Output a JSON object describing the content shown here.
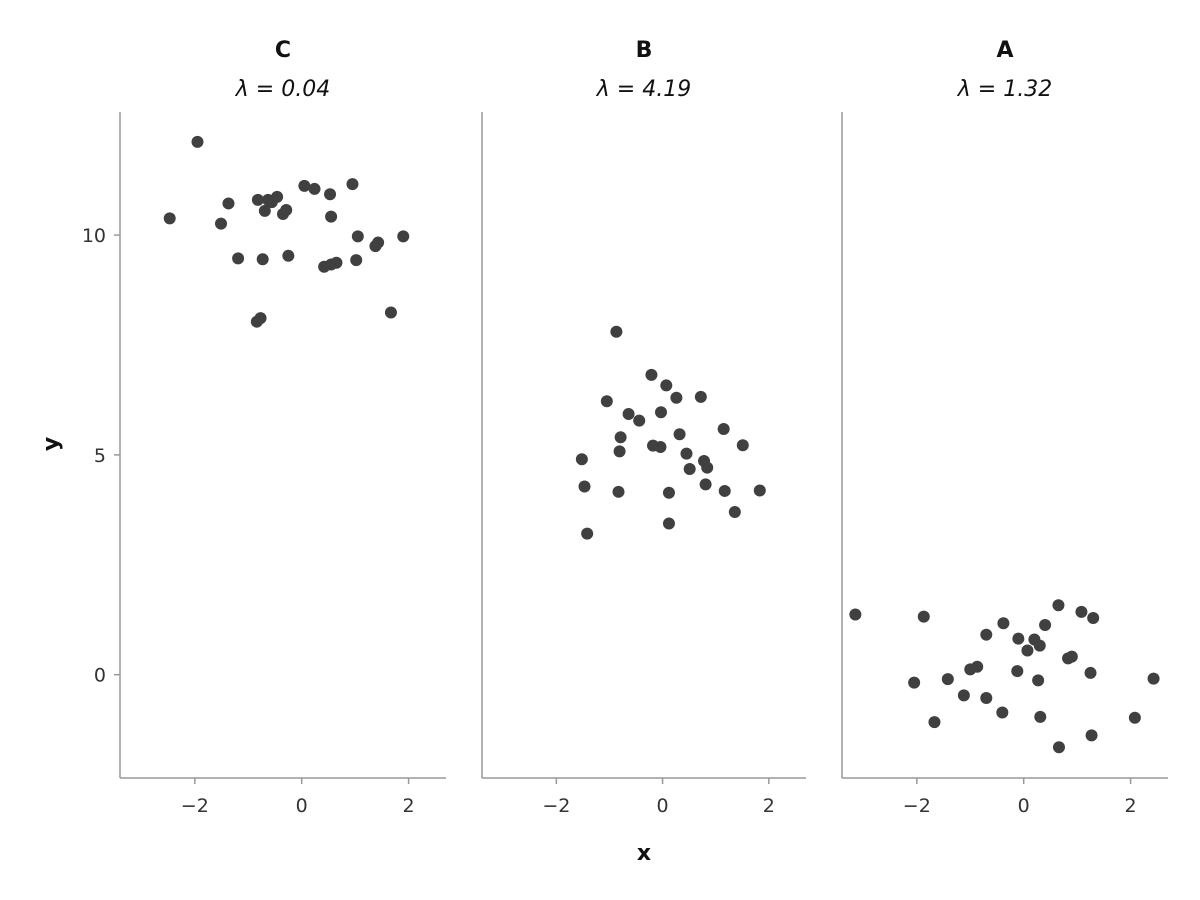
{
  "chart_data": {
    "type": "scatter",
    "layout": "facets-1x3",
    "xlabel": "x",
    "ylabel": "y",
    "xlim": [
      -3.4,
      2.7
    ],
    "ylim": [
      -2.35,
      12.8
    ],
    "x_ticks": [
      -2,
      0,
      2
    ],
    "x_tick_labels": [
      "−2",
      "0",
      "2"
    ],
    "y_ticks": [
      0,
      5,
      10
    ],
    "y_tick_labels": [
      "0",
      "5",
      "10"
    ],
    "point_color": "#404040",
    "facets": [
      {
        "title": "C",
        "subtitle": "λ = 0.04",
        "x": [
          -2.47,
          -1.95,
          -1.37,
          -1.51,
          -0.82,
          -0.63,
          -0.56,
          -0.46,
          -0.29,
          -0.35,
          -0.69,
          0.05,
          0.24,
          0.53,
          0.95,
          0.55,
          1.05,
          -1.19,
          -0.73,
          -0.25,
          0.42,
          0.55,
          0.65,
          1.02,
          1.38,
          1.43,
          1.9,
          1.67,
          -0.84,
          -0.77
        ],
        "y": [
          10.38,
          12.12,
          10.72,
          10.26,
          10.8,
          10.8,
          10.75,
          10.87,
          10.57,
          10.48,
          10.55,
          11.12,
          11.05,
          10.93,
          11.16,
          10.42,
          9.97,
          9.47,
          9.45,
          9.53,
          9.28,
          9.33,
          9.37,
          9.43,
          9.75,
          9.83,
          9.97,
          8.24,
          8.03,
          8.11
        ]
      },
      {
        "title": "B",
        "subtitle": "λ = 4.19",
        "x": [
          -0.87,
          -0.21,
          0.07,
          0.72,
          -1.05,
          -0.64,
          -0.44,
          -0.03,
          0.26,
          -0.79,
          0.32,
          1.15,
          1.51,
          -1.52,
          -0.81,
          -0.18,
          -0.04,
          0.45,
          0.51,
          0.78,
          0.84,
          -1.47,
          -0.83,
          0.12,
          0.81,
          1.17,
          1.83,
          1.36,
          0.12,
          -1.42
        ],
        "y": [
          7.8,
          6.82,
          6.58,
          6.32,
          6.22,
          5.93,
          5.78,
          5.97,
          6.3,
          5.4,
          5.47,
          5.59,
          5.22,
          4.9,
          5.08,
          5.21,
          5.18,
          5.03,
          4.68,
          4.86,
          4.71,
          4.28,
          4.16,
          4.14,
          4.33,
          4.18,
          4.19,
          3.7,
          3.44,
          3.21
        ]
      },
      {
        "title": "A",
        "subtitle": "λ = 1.32",
        "x": [
          -3.15,
          -1.87,
          0.65,
          1.08,
          1.3,
          -0.38,
          0.4,
          -0.7,
          -0.1,
          0.2,
          0.3,
          0.07,
          0.83,
          0.9,
          -1.0,
          -0.87,
          -0.12,
          1.25,
          0.27,
          -1.42,
          -2.05,
          2.43,
          -1.12,
          -0.7,
          -0.4,
          0.31,
          2.08,
          -1.67,
          1.27,
          0.66
        ],
        "y": [
          1.37,
          1.32,
          1.58,
          1.43,
          1.29,
          1.17,
          1.13,
          0.91,
          0.82,
          0.8,
          0.66,
          0.55,
          0.37,
          0.41,
          0.12,
          0.18,
          0.08,
          0.04,
          -0.13,
          -0.1,
          -0.18,
          -0.09,
          -0.47,
          -0.53,
          -0.86,
          -0.96,
          -0.98,
          -1.08,
          -1.38,
          -1.65
        ]
      }
    ]
  }
}
